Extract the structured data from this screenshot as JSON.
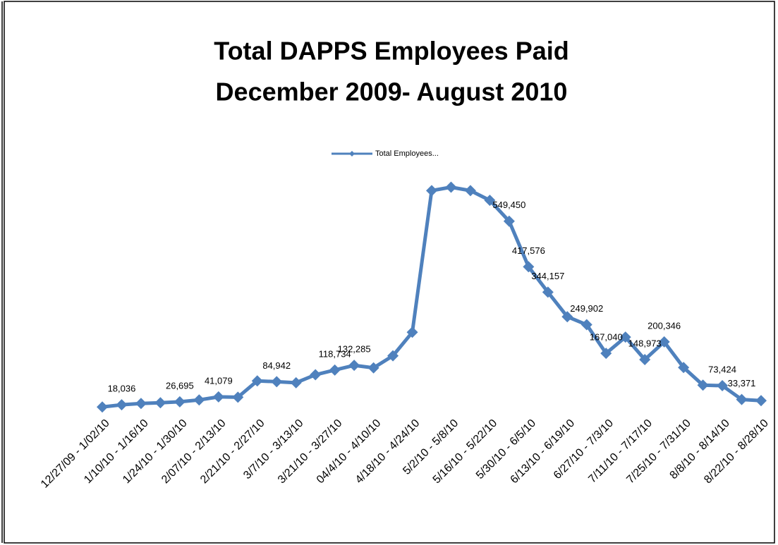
{
  "chart_data": {
    "type": "line",
    "title": "Total DAPPS Employees Paid",
    "subtitle": "December 2009- August 2010",
    "categories": [
      "12/27/09 - 1/02/10",
      null,
      "1/10/10 - 1/16/10",
      null,
      "1/24/10 - 1/30/10",
      null,
      "2/07/10 - 2/13/10",
      null,
      "2/21/10 - 2/27/10",
      null,
      "3/7/10 - 3/13/10",
      null,
      "3/21/10 - 3/27/10",
      null,
      "04/4/10 - 4/10/10",
      null,
      "4/18/10 - 4/24/10",
      null,
      "5/2/10 - 5/8/10",
      null,
      "5/16/10 - 5/22/10",
      null,
      "5/30/10 - 6/5/10",
      null,
      "6/13/10 - 6/19/10",
      null,
      "6/27/10 - 7/3/10",
      null,
      "7/11/10 - 7/17/10",
      null,
      "7/25/10 - 7/31/10",
      null,
      "8/8/10 - 8/14/10",
      null,
      "8/22/10 - 8/28/10"
    ],
    "series": [
      {
        "name": "Total Employees...",
        "color": "#4f81bd",
        "values": [
          11800,
          18036,
          22000,
          24100,
          26695,
          32200,
          41079,
          40000,
          87300,
          84942,
          82000,
          105000,
          118734,
          132285,
          125000,
          160000,
          228000,
          638000,
          648000,
          638000,
          610000,
          549450,
          417576,
          344157,
          273000,
          249902,
          167040,
          214000,
          148973,
          200346,
          126000,
          75000,
          73424,
          33371,
          30000
        ],
        "value_labels": [
          null,
          "18,036",
          null,
          null,
          "26,695",
          null,
          "41,079",
          null,
          null,
          "84,942",
          null,
          null,
          "118,734",
          "132,285",
          null,
          null,
          null,
          null,
          null,
          null,
          null,
          "549,450",
          "417,576",
          "344,157",
          null,
          "249,902",
          "167,040",
          null,
          "148,973",
          "200,346",
          null,
          null,
          "73,424",
          "33,371",
          null
        ]
      }
    ],
    "ylim": [
      0,
      700000
    ],
    "legend": "top"
  }
}
